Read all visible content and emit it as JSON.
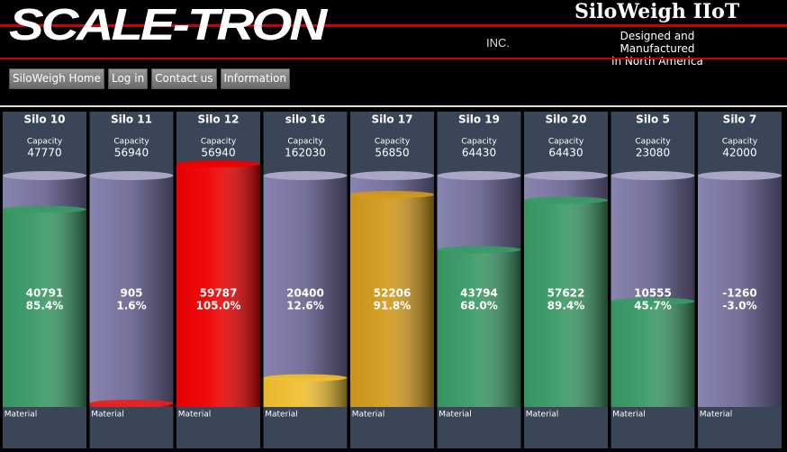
{
  "header": {
    "logo": "SCALE-TRON",
    "logo_suffix": "INC.",
    "title": "SiloWeigh IIoT",
    "subtitle_lines": [
      "Designed and Manufactured",
      "in North America"
    ]
  },
  "nav": [
    "SiloWeigh Home",
    "Log in",
    "Contact us",
    "Information"
  ],
  "capacity_label": "Capacity",
  "material_label": "Material",
  "silos": [
    {
      "name": "Silo 10",
      "capacity": 47770,
      "level": 40791,
      "percent": {
        "value": 85.4,
        "label": "85.4%"
      },
      "color": "#3a9a66"
    },
    {
      "name": "Silo 11",
      "capacity": 56940,
      "level": 905,
      "percent": {
        "value": 1.6,
        "label": "1.6%"
      },
      "color": "#e82020"
    },
    {
      "name": "Silo 12",
      "capacity": 56940,
      "level": 59787,
      "percent": {
        "value": 105.0,
        "label": "105.0%"
      },
      "color": "#f00000"
    },
    {
      "name": "silo 16",
      "capacity": 162030,
      "level": 20400,
      "percent": {
        "value": 12.6,
        "label": "12.6%"
      },
      "color": "#f2c030"
    },
    {
      "name": "Silo 17",
      "capacity": 56850,
      "level": 52206,
      "percent": {
        "value": 91.8,
        "label": "91.8%"
      },
      "color": "#d49a1c"
    },
    {
      "name": "Silo 19",
      "capacity": 64430,
      "level": 43794,
      "percent": {
        "value": 68.0,
        "label": "68.0%"
      },
      "color": "#3a9a66"
    },
    {
      "name": "Silo 20",
      "capacity": 64430,
      "level": 57622,
      "percent": {
        "value": 89.4,
        "label": "89.4%"
      },
      "color": "#3a9a66"
    },
    {
      "name": "Silo 5",
      "capacity": 23080,
      "level": 10555,
      "percent": {
        "value": 45.7,
        "label": "45.7%"
      },
      "color": "#3a9a66"
    },
    {
      "name": "Silo 7",
      "capacity": 42000,
      "level": -1260,
      "percent": {
        "value": -3.0,
        "label": "-3.0%"
      },
      "color": "#e82020"
    }
  ]
}
